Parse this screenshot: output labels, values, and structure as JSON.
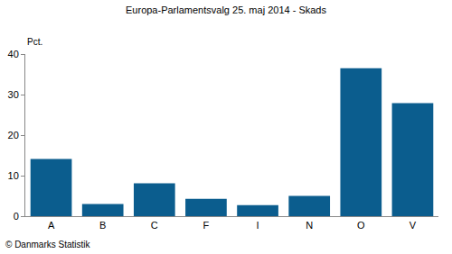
{
  "chart_data": {
    "type": "bar",
    "title": "Europa-Parlamentsvalg 25. maj 2014 - Skads",
    "ylabel": "Pct.",
    "annotation": "© Danmarks Statistik",
    "categories": [
      "A",
      "B",
      "C",
      "F",
      "I",
      "N",
      "O",
      "V"
    ],
    "values": [
      14.1,
      3.0,
      8.1,
      4.3,
      2.7,
      5.0,
      36.5,
      27.9
    ],
    "color": "#0b5d8e",
    "ylim": [
      0,
      40
    ],
    "yticks": [
      0,
      10,
      20,
      30,
      40
    ],
    "grid": false
  }
}
